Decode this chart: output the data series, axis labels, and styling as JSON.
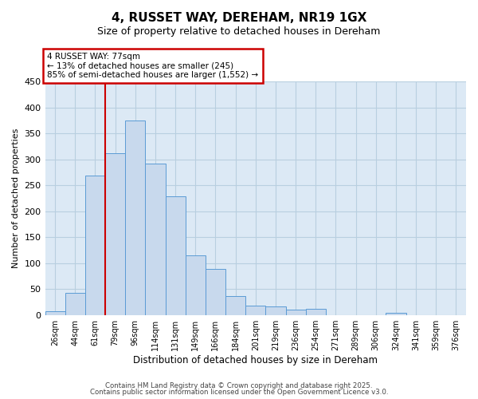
{
  "title": "4, RUSSET WAY, DEREHAM, NR19 1GX",
  "subtitle": "Size of property relative to detached houses in Dereham",
  "xlabel": "Distribution of detached houses by size in Dereham",
  "ylabel": "Number of detached properties",
  "bar_labels": [
    "26sqm",
    "44sqm",
    "61sqm",
    "79sqm",
    "96sqm",
    "114sqm",
    "131sqm",
    "149sqm",
    "166sqm",
    "184sqm",
    "201sqm",
    "219sqm",
    "236sqm",
    "254sqm",
    "271sqm",
    "289sqm",
    "306sqm",
    "324sqm",
    "341sqm",
    "359sqm",
    "376sqm"
  ],
  "bar_values": [
    7,
    42,
    268,
    312,
    375,
    291,
    229,
    115,
    88,
    36,
    18,
    16,
    11,
    12,
    0,
    0,
    0,
    4,
    0,
    0,
    0
  ],
  "bar_color": "#c8d9ed",
  "bar_edge_color": "#5b9bd5",
  "vline_color": "#cc0000",
  "annotation_title": "4 RUSSET WAY: 77sqm",
  "annotation_line1": "← 13% of detached houses are smaller (245)",
  "annotation_line2": "85% of semi-detached houses are larger (1,552) →",
  "annotation_box_color": "#ffffff",
  "annotation_box_edge": "#cc0000",
  "ylim": [
    0,
    450
  ],
  "yticks": [
    0,
    50,
    100,
    150,
    200,
    250,
    300,
    350,
    400,
    450
  ],
  "footer1": "Contains HM Land Registry data © Crown copyright and database right 2025.",
  "footer2": "Contains public sector information licensed under the Open Government Licence v3.0.",
  "background_color": "#ffffff",
  "plot_bg_color": "#dce9f5",
  "grid_color": "#b8cfe0",
  "vline_bar_index": 3
}
